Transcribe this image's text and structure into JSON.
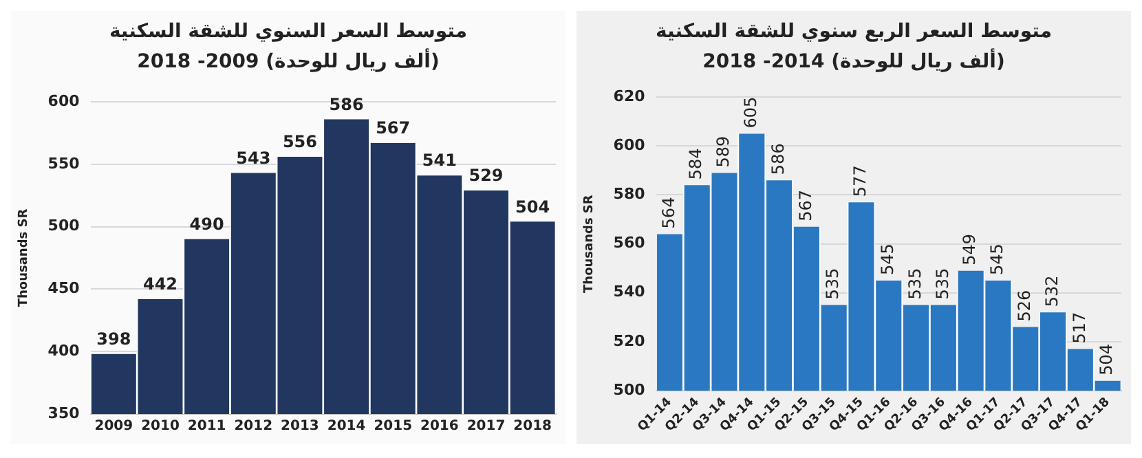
{
  "chart_data": [
    {
      "type": "bar",
      "title": "متوسط السعر السنوي للشقة السكنية",
      "subtitle": "(ألف ريال للوحدة)  2009- 2018",
      "ylabel": "Thousands SR",
      "categories": [
        "2009",
        "2010",
        "2011",
        "2012",
        "2013",
        "2014",
        "2015",
        "2016",
        "2017",
        "2018"
      ],
      "values": [
        398,
        442,
        490,
        543,
        556,
        586,
        567,
        541,
        529,
        504
      ],
      "color": "#22375f",
      "ylim": [
        350,
        600
      ],
      "yticks": [
        350,
        400,
        450,
        500,
        550,
        600
      ],
      "grid": "y",
      "data_labels": true,
      "legend": false
    },
    {
      "type": "bar",
      "title": "متوسط السعر الربع سنوي للشقة السكنية",
      "subtitle": "(ألف ريال للوحدة) 2014- 2018",
      "ylabel": "Thousands SR",
      "categories": [
        "Q1-14",
        "Q2-14",
        "Q3-14",
        "Q4-14",
        "Q1-15",
        "Q2-15",
        "Q3-15",
        "Q4-15",
        "Q1-16",
        "Q2-16",
        "Q3-16",
        "Q4-16",
        "Q1-17",
        "Q2-17",
        "Q3-17",
        "Q4-17",
        "Q1-18"
      ],
      "values": [
        564,
        584,
        589,
        605,
        586,
        567,
        535,
        577,
        545,
        535,
        535,
        549,
        545,
        526,
        532,
        517,
        504
      ],
      "color": "#2a78c2",
      "ylim": [
        500,
        620
      ],
      "yticks": [
        500,
        520,
        540,
        560,
        580,
        600,
        620
      ],
      "grid": "y",
      "data_labels": true,
      "legend": false
    }
  ]
}
